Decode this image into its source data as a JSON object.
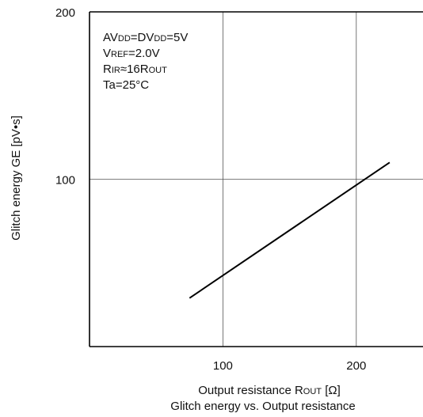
{
  "chart_data": {
    "type": "line",
    "title": "Glitch energy vs. Output resistance",
    "xlabel": {
      "prefix": "Output resistance R",
      "sub": "OUT",
      "suffix": " [Ω]"
    },
    "ylabel": "Glitch energy GE  [pV•s]",
    "xlim": [
      0,
      250
    ],
    "ylim": [
      0,
      200
    ],
    "xticks": [
      100,
      200
    ],
    "yticks": [
      100,
      200
    ],
    "grid": true,
    "series": [
      {
        "x": [
          75,
          225
        ],
        "y": [
          29,
          110
        ]
      }
    ],
    "conditions": [
      [
        {
          "t": "AV"
        },
        {
          "t": "DD",
          "s": true
        },
        {
          "t": "=DV"
        },
        {
          "t": "DD",
          "s": true
        },
        {
          "t": "=5V"
        }
      ],
      [
        {
          "t": "V"
        },
        {
          "t": "REF",
          "s": true
        },
        {
          "t": "=2.0V"
        }
      ],
      [
        {
          "t": "R"
        },
        {
          "t": "IR",
          "s": true
        },
        {
          "t": "≈16R"
        },
        {
          "t": "OUT",
          "s": true
        }
      ],
      [
        {
          "t": "Ta=25°C"
        }
      ]
    ],
    "colors": {
      "line": "#000000",
      "grid": "#555555",
      "frame": "#000000"
    }
  }
}
